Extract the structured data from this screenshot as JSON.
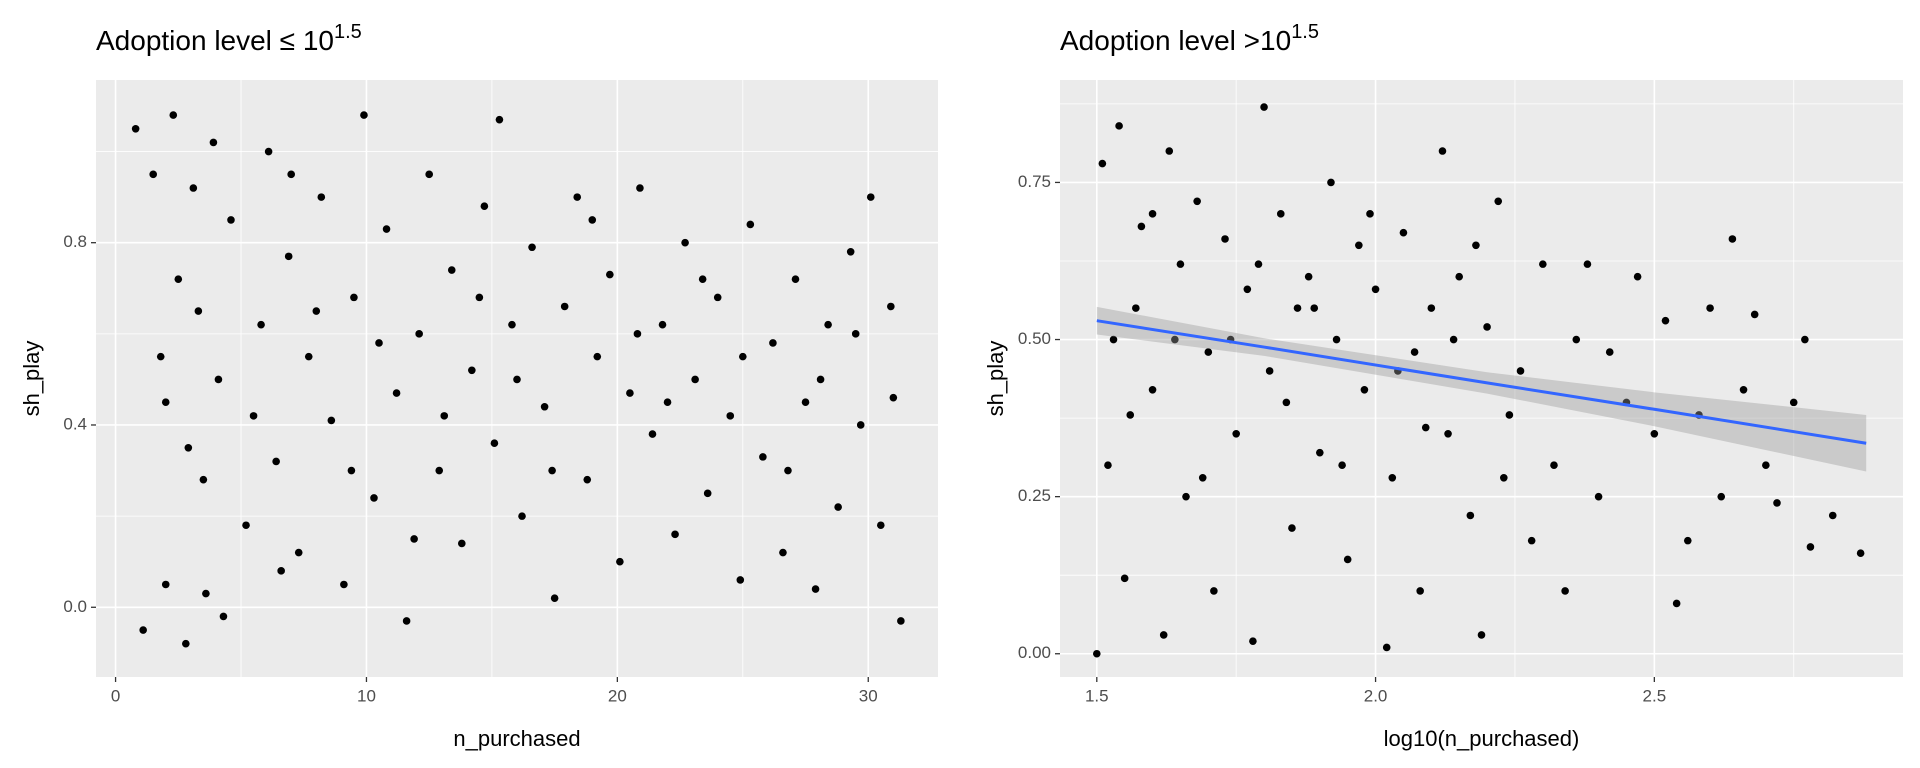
{
  "chart_data": [
    {
      "type": "scatter",
      "title": "Adoption level  ≤ 10",
      "title_superscript": "1.5",
      "x_label": "n_purchased",
      "y_label": "sh_play",
      "xlim": [
        -0.78,
        32.78
      ],
      "ylim": [
        -0.153,
        1.157
      ],
      "xticks": [
        0,
        10,
        20,
        30
      ],
      "yticks": [
        {
          "value": 0,
          "label": "0.0"
        },
        0.4,
        0.8
      ],
      "minor_xticks": [
        5,
        15,
        25
      ],
      "minor_yticks": [
        0.2,
        0.6,
        1
      ],
      "grid": true,
      "color": "#000000",
      "x": [
        0.8,
        1.5,
        2.3,
        3.1,
        3.9,
        1.1,
        2.0,
        2.8,
        3.6,
        4.3,
        2.5,
        3.3,
        1.8,
        2.0,
        2.9,
        3.5,
        4.1,
        4.6,
        5.2,
        5.8,
        6.1,
        6.4,
        6.9,
        7.3,
        7.7,
        8.2,
        8.6,
        9.1,
        9.5,
        9.9,
        10.3,
        10.8,
        11.2,
        11.6,
        12.1,
        12.5,
        12.9,
        13.4,
        13.8,
        14.2,
        14.7,
        15.1,
        15.3,
        15.8,
        16.2,
        16.6,
        17.1,
        17.5,
        17.9,
        18.4,
        18.8,
        19.2,
        19.7,
        20.1,
        20.5,
        20.9,
        21.4,
        21.8,
        22.3,
        22.7,
        23.1,
        23.6,
        24.0,
        24.5,
        24.9,
        25.3,
        25.8,
        26.2,
        26.6,
        27.1,
        27.5,
        27.9,
        28.4,
        28.8,
        29.3,
        29.7,
        30.1,
        30.5,
        30.9,
        31.3,
        5.5,
        6.6,
        7.0,
        8.0,
        9.4,
        10.5,
        11.9,
        13.1,
        14.5,
        16.0,
        17.4,
        19.0,
        20.8,
        22.0,
        23.4,
        25.0,
        26.8,
        28.1,
        29.5,
        31.0
      ],
      "values": [
        1.05,
        0.95,
        1.08,
        0.92,
        1.02,
        -0.05,
        0.05,
        -0.08,
        0.03,
        -0.02,
        0.72,
        0.65,
        0.55,
        0.45,
        0.35,
        0.28,
        0.5,
        0.85,
        0.18,
        0.62,
        1.0,
        0.32,
        0.77,
        0.12,
        0.55,
        0.9,
        0.41,
        0.05,
        0.68,
        1.08,
        0.24,
        0.83,
        0.47,
        -0.03,
        0.6,
        0.95,
        0.3,
        0.74,
        0.14,
        0.52,
        0.88,
        0.36,
        1.07,
        0.62,
        0.2,
        0.79,
        0.44,
        0.02,
        0.66,
        0.9,
        0.28,
        0.55,
        0.73,
        0.1,
        0.47,
        0.92,
        0.38,
        0.62,
        0.16,
        0.8,
        0.5,
        0.25,
        0.68,
        0.42,
        0.06,
        0.84,
        0.33,
        0.58,
        0.12,
        0.72,
        0.45,
        0.04,
        0.62,
        0.22,
        0.78,
        0.4,
        0.9,
        0.18,
        0.66,
        -0.03,
        0.42,
        0.08,
        0.95,
        0.65,
        0.3,
        0.58,
        0.15,
        0.42,
        0.68,
        0.5,
        0.3,
        0.85,
        0.6,
        0.45,
        0.72,
        0.55,
        0.3,
        0.5,
        0.6,
        0.46
      ]
    },
    {
      "type": "scatter",
      "title": "Adoption level >10",
      "title_superscript": "1.5",
      "x_label": "log10(n_purchased)",
      "y_label": "sh_play",
      "xlim": [
        1.434,
        2.946
      ],
      "ylim": [
        -0.037,
        0.913
      ],
      "xticks": [
        1.5,
        {
          "value": 2,
          "label": "2.0"
        },
        2.5
      ],
      "yticks": [
        {
          "value": 0,
          "label": "0.00"
        },
        0.25,
        {
          "value": 0.5,
          "label": "0.50"
        },
        0.75
      ],
      "minor_xticks": [
        1.75,
        2.25,
        2.75
      ],
      "minor_yticks": [
        0.125,
        0.375,
        0.625,
        0.875
      ],
      "grid": true,
      "color": "#000000",
      "x": [
        1.5,
        1.51,
        1.52,
        1.54,
        1.55,
        1.57,
        1.58,
        1.6,
        1.62,
        1.63,
        1.65,
        1.66,
        1.68,
        1.7,
        1.71,
        1.73,
        1.75,
        1.77,
        1.78,
        1.8,
        1.81,
        1.83,
        1.85,
        1.86,
        1.88,
        1.9,
        1.92,
        1.93,
        1.95,
        1.97,
        1.98,
        2.0,
        2.02,
        2.03,
        2.05,
        2.07,
        2.08,
        2.1,
        2.12,
        2.13,
        2.15,
        2.17,
        2.19,
        2.2,
        2.22,
        2.24,
        2.26,
        2.28,
        2.3,
        2.32,
        2.34,
        2.36,
        2.38,
        2.4,
        2.42,
        2.45,
        2.47,
        2.5,
        2.52,
        2.54,
        2.56,
        2.58,
        2.6,
        2.62,
        2.64,
        2.66,
        2.68,
        2.7,
        2.72,
        2.75,
        2.77,
        2.78,
        2.82,
        2.87,
        1.53,
        1.56,
        1.6,
        1.64,
        1.69,
        1.74,
        1.79,
        1.84,
        1.89,
        1.94,
        1.99,
        2.04,
        2.09,
        2.14,
        2.18,
        2.23
      ],
      "values": [
        0.0,
        0.78,
        0.3,
        0.84,
        0.12,
        0.55,
        0.68,
        0.42,
        0.03,
        0.8,
        0.62,
        0.25,
        0.72,
        0.48,
        0.1,
        0.66,
        0.35,
        0.58,
        0.02,
        0.87,
        0.45,
        0.7,
        0.2,
        0.55,
        0.6,
        0.32,
        0.75,
        0.5,
        0.15,
        0.65,
        0.42,
        0.58,
        0.01,
        0.28,
        0.67,
        0.48,
        0.1,
        0.55,
        0.8,
        0.35,
        0.6,
        0.22,
        0.03,
        0.52,
        0.72,
        0.38,
        0.45,
        0.18,
        0.62,
        0.3,
        0.1,
        0.5,
        0.62,
        0.25,
        0.48,
        0.4,
        0.6,
        0.35,
        0.53,
        0.08,
        0.18,
        0.38,
        0.55,
        0.25,
        0.66,
        0.42,
        0.54,
        0.3,
        0.24,
        0.4,
        0.5,
        0.17,
        0.22,
        0.16,
        0.5,
        0.38,
        0.7,
        0.5,
        0.28,
        0.5,
        0.62,
        0.4,
        0.55,
        0.3,
        0.7,
        0.45,
        0.36,
        0.5,
        0.65,
        0.28
      ],
      "fit": {
        "color": "#3366ff",
        "ribbon_color": "#999999",
        "x": [
          1.5,
          1.8,
          2.2,
          2.5,
          2.88
        ],
        "y": [
          0.53,
          0.488,
          0.431,
          0.389,
          0.335
        ],
        "lower": [
          0.508,
          0.474,
          0.414,
          0.362,
          0.29
        ],
        "upper": [
          0.552,
          0.502,
          0.448,
          0.416,
          0.38
        ]
      }
    }
  ]
}
